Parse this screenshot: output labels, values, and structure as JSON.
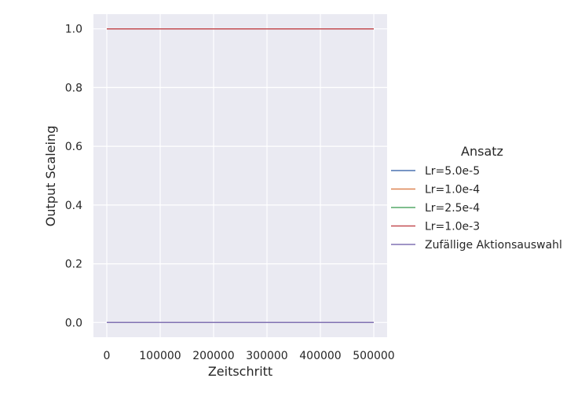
{
  "chart_data": {
    "type": "line",
    "title": "",
    "xlabel": "Zeitschritt",
    "ylabel": "Output Scaleing",
    "xlim": [
      -25000,
      525000
    ],
    "ylim": [
      -0.05,
      1.05
    ],
    "xticks": [
      0,
      100000,
      200000,
      300000,
      400000,
      500000
    ],
    "xtick_labels": [
      "0",
      "100000",
      "200000",
      "300000",
      "400000",
      "500000"
    ],
    "yticks": [
      0.0,
      0.2,
      0.4,
      0.6,
      0.8,
      1.0
    ],
    "ytick_labels": [
      "0.0",
      "0.2",
      "0.4",
      "0.6",
      "0.8",
      "1.0"
    ],
    "grid": true,
    "legend": {
      "title": "Ansatz",
      "placement": "right-outside"
    },
    "series": [
      {
        "name": "Lr=5.0e-5",
        "color": "#4c72b0",
        "x": [
          0,
          500000
        ],
        "y": [
          1.0,
          1.0
        ]
      },
      {
        "name": "Lr=1.0e-4",
        "color": "#dd8452",
        "x": [
          0,
          500000
        ],
        "y": [
          1.0,
          1.0
        ]
      },
      {
        "name": "Lr=2.5e-4",
        "color": "#55a868",
        "x": [
          0,
          500000
        ],
        "y": [
          1.0,
          1.0
        ]
      },
      {
        "name": "Lr=1.0e-3",
        "color": "#c44e52",
        "x": [
          0,
          500000
        ],
        "y": [
          1.0,
          1.0
        ]
      },
      {
        "name": "Zufällige Aktionsauswahl",
        "color": "#8172b3",
        "x": [
          0,
          500000
        ],
        "y": [
          0.0,
          0.0
        ]
      }
    ]
  }
}
